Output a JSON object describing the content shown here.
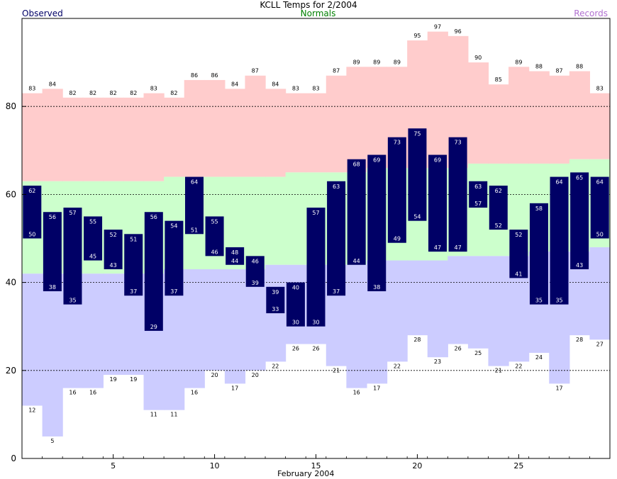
{
  "header": {
    "title": "KCLL Temps for 2/2004",
    "observed_label": "Observed",
    "normals_label": "Normals",
    "records_label": "Records"
  },
  "colors": {
    "observed": "#000066",
    "observed_label_text": "#ffffff",
    "normals_band": "#ccffcc",
    "record_high_band": "#ffcccc",
    "record_low_band": "#ccccff",
    "grid": "#000000",
    "normals_text": "#008000",
    "records_text": "#b070d0"
  },
  "chart_data": {
    "type": "bar",
    "subtype": "floating-range",
    "xlabel": "February 2004",
    "ylim": [
      0,
      100
    ],
    "xlim": [
      1,
      29
    ],
    "x_ticks": [
      5,
      10,
      15,
      20,
      25
    ],
    "y_ticks": [
      0,
      20,
      40,
      60,
      80
    ],
    "grid": "dashed horizontal at 20, 40, 60, 80",
    "days": [
      1,
      2,
      3,
      4,
      5,
      6,
      7,
      8,
      9,
      10,
      11,
      12,
      13,
      14,
      15,
      16,
      17,
      18,
      19,
      20,
      21,
      22,
      23,
      24,
      25,
      26,
      27,
      28,
      29
    ],
    "series": [
      {
        "name": "Observed",
        "high": [
          62,
          56,
          57,
          55,
          52,
          51,
          56,
          54,
          64,
          55,
          48,
          46,
          39,
          40,
          57,
          63,
          68,
          69,
          73,
          75,
          69,
          73,
          63,
          62,
          52,
          58,
          64,
          65,
          64
        ],
        "low": [
          50,
          38,
          35,
          45,
          43,
          37,
          29,
          37,
          51,
          46,
          44,
          39,
          33,
          30,
          30,
          37,
          44,
          38,
          49,
          54,
          47,
          47,
          57,
          52,
          41,
          35,
          35,
          43,
          50
        ]
      },
      {
        "name": "Normals",
        "high": [
          63,
          63,
          63,
          63,
          63,
          63,
          63,
          64,
          64,
          64,
          64,
          64,
          64,
          65,
          65,
          65,
          65,
          66,
          66,
          66,
          66,
          66,
          67,
          67,
          67,
          67,
          67,
          68,
          68
        ],
        "low": [
          42,
          42,
          42,
          42,
          42,
          42,
          42,
          43,
          43,
          43,
          43,
          43,
          44,
          44,
          44,
          44,
          44,
          45,
          45,
          45,
          45,
          46,
          46,
          46,
          46,
          47,
          47,
          47,
          48
        ]
      },
      {
        "name": "Records",
        "high": [
          83,
          84,
          82,
          82,
          82,
          82,
          83,
          82,
          86,
          86,
          84,
          87,
          84,
          83,
          83,
          87,
          89,
          89,
          89,
          95,
          97,
          96,
          90,
          85,
          89,
          88,
          87,
          88,
          83
        ],
        "low": [
          12,
          5,
          16,
          16,
          19,
          19,
          11,
          11,
          16,
          20,
          17,
          20,
          22,
          26,
          26,
          21,
          16,
          17,
          22,
          28,
          23,
          26,
          25,
          21,
          22,
          24,
          17,
          28,
          27
        ]
      }
    ]
  }
}
